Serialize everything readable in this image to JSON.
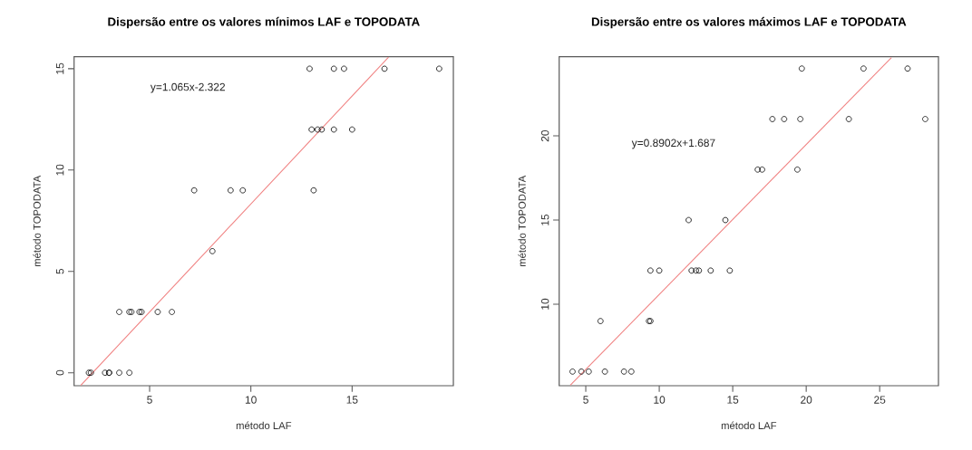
{
  "chart_data": [
    {
      "type": "scatter",
      "title": "Dispersão entre os valores mínimos LAF e TOPODATA",
      "xlabel": "método LAF",
      "ylabel": "método TOPODATA",
      "marker": "circle",
      "xlim": [
        1.27,
        20.0
      ],
      "ylim": [
        -0.64,
        15.59
      ],
      "xticks": [
        5,
        10,
        15
      ],
      "yticks": [
        0,
        5,
        10,
        15
      ],
      "annotations": [
        "y=1.065x-2.322"
      ],
      "series": [
        {
          "color": "#000000",
          "x": [
            12.9,
            14.1,
            14.6,
            16.6,
            19.3,
            13.0,
            13.3,
            13.5,
            14.1,
            15.0,
            7.2,
            9.0,
            9.6,
            13.1,
            8.1,
            3.5,
            4.0,
            4.1,
            4.5,
            4.6,
            5.4,
            6.1,
            2.0,
            2.1,
            2.8,
            3.0,
            3.0,
            3.5,
            4.0
          ],
          "values": [
            15,
            15,
            15,
            15,
            15,
            12,
            12,
            12,
            12,
            12,
            9,
            9,
            9,
            9,
            6,
            3,
            3,
            3,
            3,
            3,
            3,
            3,
            0,
            0,
            0,
            0,
            0,
            0,
            0
          ]
        },
        {
          "type": "line",
          "marker": "none",
          "color": "#f08080",
          "x": [
            1.6,
            16.8
          ],
          "values": [
            -0.62,
            15.57
          ]
        }
      ]
    },
    {
      "type": "scatter",
      "title": "Dispersão entre os valores máximos LAF e TOPODATA",
      "xlabel": "método LAF",
      "ylabel": "método TOPODATA",
      "marker": "circle",
      "xlim": [
        3.19,
        29.0
      ],
      "ylim": [
        5.16,
        24.7
      ],
      "xticks": [
        5,
        10,
        15,
        20,
        25
      ],
      "yticks": [
        10,
        15,
        20
      ],
      "annotations": [
        "y=0.8902x+1.687"
      ],
      "series": [
        {
          "color": "#000000",
          "x": [
            19.7,
            23.9,
            26.9,
            17.7,
            18.5,
            19.6,
            22.9,
            28.1,
            16.7,
            17.0,
            19.4,
            12.0,
            14.5,
            9.4,
            10.0,
            12.2,
            12.5,
            12.7,
            13.5,
            14.8,
            6.0,
            9.3,
            9.4,
            4.1,
            4.7,
            5.2,
            6.3,
            7.6,
            8.1
          ],
          "values": [
            24,
            24,
            24,
            21,
            21,
            21,
            21,
            21,
            18,
            18,
            18,
            15,
            15,
            12,
            12,
            12,
            12,
            12,
            12,
            12,
            9,
            9,
            9,
            6,
            6,
            6,
            6,
            6,
            6
          ]
        },
        {
          "type": "line",
          "marker": "none",
          "color": "#f08080",
          "x": [
            3.95,
            25.8
          ],
          "values": [
            5.2,
            24.65
          ]
        }
      ]
    }
  ]
}
